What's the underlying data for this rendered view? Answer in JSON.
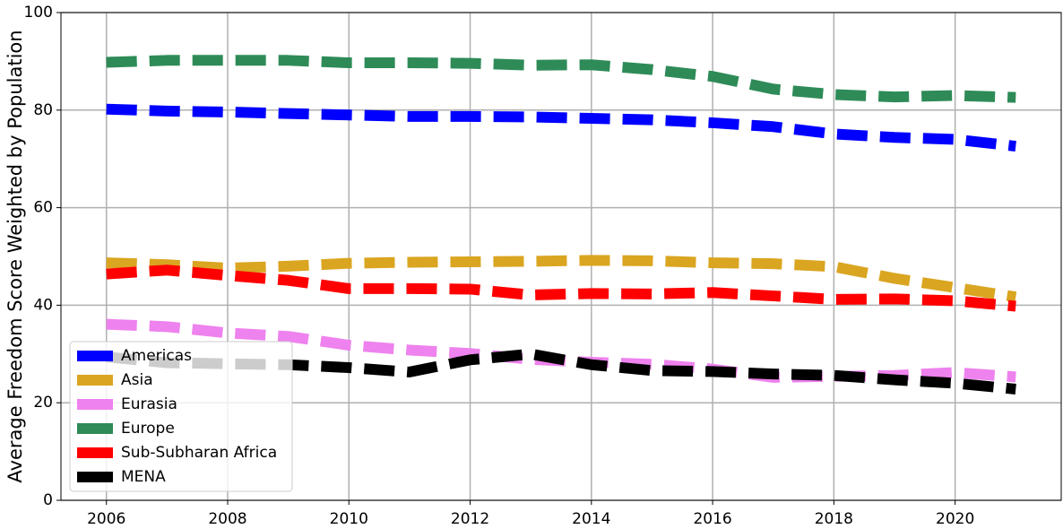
{
  "chart_data": {
    "type": "line",
    "y_label": "Average Freedom Score Weighted by Population",
    "x": [
      2006,
      2007,
      2008,
      2009,
      2010,
      2011,
      2012,
      2013,
      2014,
      2015,
      2016,
      2017,
      2018,
      2019,
      2020,
      2021
    ],
    "series": [
      {
        "name": "Americas",
        "color": "#0000ff",
        "values": [
          80.2,
          79.8,
          79.6,
          79.3,
          79.0,
          78.7,
          78.7,
          78.6,
          78.3,
          78.0,
          77.4,
          76.6,
          75.1,
          74.4,
          74.0,
          72.6
        ]
      },
      {
        "name": "Asia",
        "color": "#daa520",
        "values": [
          48.7,
          48.3,
          47.6,
          48.0,
          48.6,
          48.8,
          48.9,
          49.0,
          49.2,
          49.1,
          48.7,
          48.5,
          47.9,
          45.5,
          43.6,
          41.7
        ]
      },
      {
        "name": "Eurasia",
        "color": "#ee82ee",
        "values": [
          36.1,
          35.6,
          34.3,
          33.6,
          31.8,
          30.8,
          30.1,
          28.9,
          28.3,
          27.9,
          26.9,
          25.2,
          25.4,
          25.6,
          26.2,
          25.3
        ]
      },
      {
        "name": "Europe",
        "color": "#2e8b57",
        "values": [
          89.8,
          90.2,
          90.2,
          90.2,
          89.7,
          89.7,
          89.6,
          89.2,
          89.3,
          88.3,
          86.9,
          84.3,
          83.2,
          82.7,
          83.0,
          82.6
        ]
      },
      {
        "name": "Sub-Subharan Africa",
        "color": "#ff0000",
        "values": [
          46.4,
          47.2,
          46.1,
          45.1,
          43.4,
          43.4,
          43.3,
          42.1,
          42.4,
          42.3,
          42.6,
          41.9,
          41.2,
          41.3,
          40.9,
          39.8
        ]
      },
      {
        "name": "MENA",
        "color": "#000000",
        "values": [
          29.4,
          28.2,
          28.0,
          27.8,
          27.2,
          26.3,
          28.8,
          30.0,
          27.8,
          26.6,
          26.4,
          25.9,
          25.6,
          24.7,
          24.0,
          22.8
        ]
      }
    ],
    "xlim": [
      2005.25,
      2021.75
    ],
    "xticks": [
      2006,
      2008,
      2010,
      2012,
      2014,
      2016,
      2018,
      2020
    ],
    "ylim": [
      0,
      100
    ],
    "yticks": [
      0,
      20,
      40,
      60,
      80,
      100
    ],
    "grid": true,
    "legend": "lower left"
  }
}
